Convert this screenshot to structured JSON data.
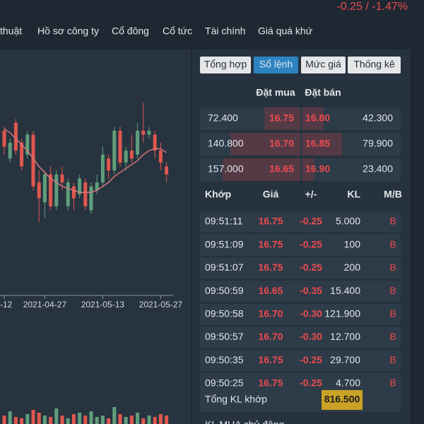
{
  "header": {
    "change": "-0.25 / -1.47%"
  },
  "nav": [
    "thuật",
    "Hồ sơ công ty",
    "Cổ đông",
    "Cổ tức",
    "Tài chính",
    "Giá quá khứ"
  ],
  "tabs": [
    "Tổng hợp",
    "Sổ lệnh",
    "Mức giá",
    "Thống kê"
  ],
  "active_tab": 1,
  "order_book": {
    "headers": [
      "Đặt mua",
      "Đặt bán"
    ],
    "rows": [
      [
        "72.400",
        "16.75",
        "16.80",
        "42.300"
      ],
      [
        "140.800",
        "16.70",
        "16.85",
        "79.900"
      ],
      [
        "157.000",
        "16.65",
        "16.90",
        "23.400"
      ]
    ]
  },
  "trades": {
    "headers": [
      "Khớp",
      "Giá",
      "+/-",
      "KL",
      "M/B"
    ],
    "rows": [
      [
        "09:51:11",
        "16.75",
        "-0.25",
        "5.000",
        "B"
      ],
      [
        "09:51:09",
        "16.75",
        "-0.25",
        "100",
        "B"
      ],
      [
        "09:51:07",
        "16.75",
        "-0.25",
        "200",
        "B"
      ],
      [
        "09:50:59",
        "16.65",
        "-0.35",
        "15.400",
        "B"
      ],
      [
        "09:50:58",
        "16.70",
        "-0.30",
        "121.900",
        "B"
      ],
      [
        "09:50:57",
        "16.70",
        "-0.30",
        "12.700",
        "B"
      ],
      [
        "09:50:35",
        "16.75",
        "-0.25",
        "29.700",
        "B"
      ],
      [
        "09:50:25",
        "16.75",
        "-0.25",
        "4.700",
        "B"
      ]
    ]
  },
  "totals": {
    "label": "Tổng KL khớp",
    "value": "816.500",
    "next_label": "KL MUA chủ động"
  },
  "chart_data": {
    "type": "candlestick",
    "open": [
      17.9,
      17.2,
      18.1,
      17.6,
      17.3,
      17.8,
      16.6,
      16.1,
      16.8,
      16.0,
      16.8,
      16.0,
      16.5,
      16.3,
      16.6,
      15.9,
      16.4,
      16.6,
      17.2,
      16.9,
      17.9,
      17.1,
      17.4,
      17.3,
      17.9,
      17.8,
      17.8,
      17.4,
      17.0
    ],
    "high": [
      18.0,
      17.7,
      18.2,
      17.7,
      17.9,
      17.9,
      16.9,
      16.9,
      17.0,
      16.9,
      17.0,
      16.7,
      16.6,
      16.8,
      16.7,
      16.6,
      16.8,
      17.5,
      17.3,
      18.0,
      18.0,
      17.5,
      17.8,
      18.1,
      18.6,
      18.0,
      17.9,
      17.6,
      17.1
    ],
    "low": [
      17.3,
      17.1,
      17.3,
      16.9,
      17.2,
      16.4,
      15.6,
      15.7,
      15.9,
      15.9,
      16.4,
      15.9,
      15.9,
      16.2,
      15.9,
      15.8,
      16.3,
      16.5,
      16.7,
      16.8,
      17.0,
      16.9,
      17.1,
      17.2,
      17.6,
      17.7,
      17.2,
      16.9,
      16.6
    ],
    "close": [
      17.5,
      17.6,
      17.4,
      17.0,
      17.8,
      16.5,
      16.2,
      16.8,
      16.0,
      16.8,
      16.6,
      16.6,
      16.2,
      16.7,
      16.0,
      16.5,
      16.6,
      17.3,
      16.9,
      17.9,
      17.1,
      17.4,
      17.2,
      17.9,
      17.8,
      17.9,
      17.4,
      17.1,
      16.8
    ],
    "ma": [
      17.95,
      17.85,
      17.7,
      17.55,
      17.4,
      17.2,
      17.0,
      16.85,
      16.7,
      16.6,
      16.5,
      16.45,
      16.4,
      16.35,
      16.35,
      16.35,
      16.4,
      16.5,
      16.6,
      16.75,
      16.85,
      16.95,
      17.05,
      17.15,
      17.3,
      17.4,
      17.45,
      17.45,
      17.35
    ],
    "volume": [
      30,
      45,
      25,
      20,
      35,
      50,
      40,
      30,
      25,
      55,
      30,
      20,
      35,
      40,
      30,
      45,
      25,
      30,
      20,
      60,
      35,
      25,
      30,
      40,
      20,
      30,
      25,
      35,
      30
    ],
    "ylim": [
      15.5,
      18.7
    ],
    "volume_ylim": [
      0,
      100
    ],
    "xticks": [
      {
        "index": 0,
        "label": "-12"
      },
      {
        "index": 7,
        "label": "2021-04-27"
      },
      {
        "index": 17,
        "label": "2021-05-13"
      },
      {
        "index": 27,
        "label": "2021-05-27"
      }
    ],
    "up_color": "#5f9e7c",
    "down_color": "#e0574f",
    "ma_color": "#d6767b"
  }
}
